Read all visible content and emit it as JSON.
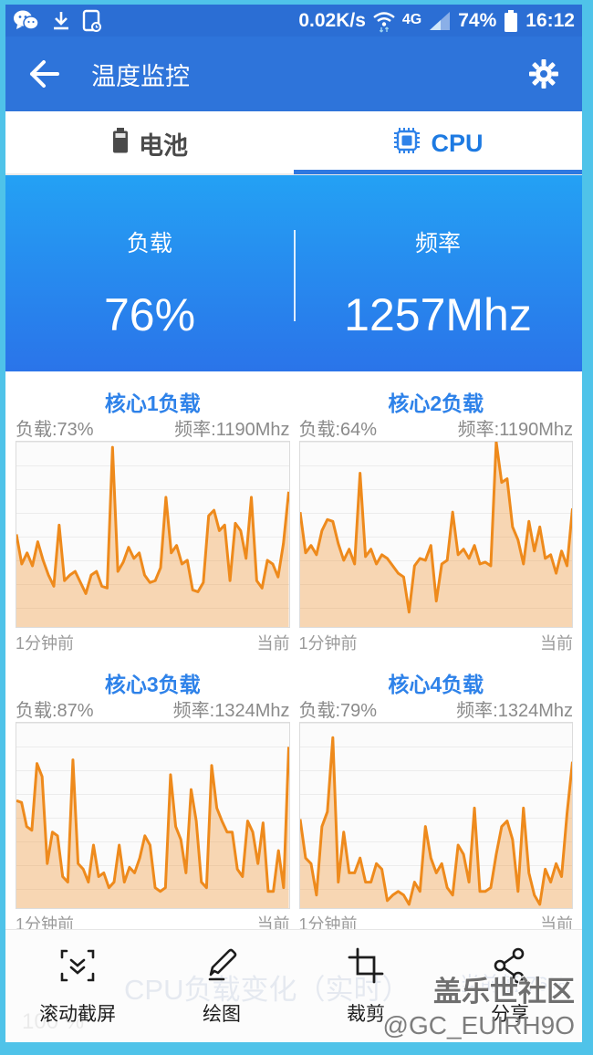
{
  "colors": {
    "frame": "#4fc3e9",
    "statusbar_bg": "#2b6ed4",
    "appbar_bg": "#2e74da",
    "tab_active": "#1d7ae2",
    "panel_gradient_top": "#24a1f4",
    "panel_gradient_bottom": "#2a74e9",
    "chart_line": "#ee8a1c",
    "chart_fill": "#ee8a1c",
    "chart_title": "#2e82e9"
  },
  "status_bar": {
    "net_speed": "0.02K/s",
    "network_type": "4G",
    "battery_percent": "74%",
    "time": "16:12",
    "left_icons": [
      "wechat-icon",
      "download-icon",
      "screenshot-notification-icon"
    ],
    "right_icons": [
      "wifi-icon",
      "signal-icon",
      "battery-icon"
    ]
  },
  "app_bar": {
    "title": "温度监控"
  },
  "tabs": [
    {
      "label": "电池",
      "active": false
    },
    {
      "label": "CPU",
      "active": true
    }
  ],
  "summary": {
    "load_label": "负载",
    "load_value": "76%",
    "freq_label": "频率",
    "freq_value": "1257Mhz"
  },
  "charts": [
    {
      "title": "核心1负载",
      "load": "负载:73%",
      "freq": "频率:1190Mhz",
      "x_left": "1分钟前",
      "x_right": "当前"
    },
    {
      "title": "核心2负载",
      "load": "负载:64%",
      "freq": "频率:1190Mhz",
      "x_left": "1分钟前",
      "x_right": "当前"
    },
    {
      "title": "核心3负载",
      "load": "负载:87%",
      "freq": "频率:1324Mhz",
      "x_left": "1分钟前",
      "x_right": "当前"
    },
    {
      "title": "核心4负载",
      "load": "负载:79%",
      "freq": "频率:1324Mhz",
      "x_left": "1分钟前",
      "x_right": "当前"
    }
  ],
  "chart_data": [
    {
      "type": "area",
      "title": "核心1负载",
      "xlabel_left": "1分钟前",
      "xlabel_right": "当前",
      "ylim": [
        0,
        100
      ],
      "values": [
        50,
        34,
        40,
        33,
        46,
        36,
        28,
        22,
        55,
        25,
        28,
        30,
        24,
        18,
        28,
        30,
        22,
        21,
        97,
        30,
        35,
        43,
        37,
        40,
        28,
        24,
        25,
        32,
        70,
        40,
        44,
        34,
        36,
        20,
        19,
        24,
        60,
        63,
        52,
        55,
        25,
        56,
        52,
        37,
        70,
        25,
        21,
        36,
        34,
        27,
        45,
        73
      ]
    },
    {
      "type": "area",
      "title": "核心2负载",
      "xlabel_left": "1分钟前",
      "xlabel_right": "当前",
      "ylim": [
        0,
        100
      ],
      "values": [
        62,
        40,
        44,
        39,
        52,
        58,
        57,
        45,
        36,
        42,
        34,
        83,
        38,
        42,
        34,
        39,
        37,
        33,
        29,
        27,
        8,
        33,
        37,
        36,
        44,
        14,
        34,
        36,
        62,
        39,
        42,
        37,
        44,
        34,
        35,
        33,
        100,
        78,
        80,
        54,
        47,
        34,
        57,
        41,
        54,
        37,
        39,
        29,
        41,
        33,
        64
      ]
    },
    {
      "type": "area",
      "title": "核心3负载",
      "xlabel_left": "1分钟前",
      "xlabel_right": "当前",
      "ylim": [
        0,
        100
      ],
      "values": [
        58,
        57,
        44,
        42,
        78,
        71,
        24,
        41,
        39,
        17,
        14,
        80,
        24,
        21,
        14,
        34,
        17,
        19,
        11,
        14,
        34,
        14,
        22,
        19,
        27,
        39,
        34,
        11,
        9,
        11,
        72,
        44,
        37,
        19,
        64,
        47,
        14,
        11,
        77,
        54,
        47,
        41,
        41,
        21,
        17,
        47,
        41,
        24,
        46,
        9,
        9,
        31,
        11,
        87
      ]
    },
    {
      "type": "area",
      "title": "核心4负载",
      "xlabel_left": "1分钟前",
      "xlabel_right": "当前",
      "ylim": [
        0,
        100
      ],
      "values": [
        48,
        27,
        24,
        7,
        44,
        52,
        92,
        14,
        41,
        19,
        19,
        27,
        14,
        14,
        24,
        21,
        4,
        7,
        9,
        7,
        2,
        14,
        9,
        44,
        27,
        19,
        24,
        11,
        7,
        34,
        29,
        14,
        54,
        9,
        9,
        11,
        29,
        44,
        47,
        37,
        9,
        54,
        19,
        7,
        2,
        21,
        14,
        24,
        17,
        51,
        79
      ]
    }
  ],
  "toolbar": {
    "items": [
      {
        "label": "滚动截屏",
        "icon": "scroll-capture-icon"
      },
      {
        "label": "绘图",
        "icon": "draw-icon"
      },
      {
        "label": "裁剪",
        "icon": "crop-icon"
      },
      {
        "label": "分享",
        "icon": "share-icon"
      }
    ]
  },
  "ghost_overlay": {
    "title": "CPU负载变化（实时）",
    "current_value": "当前值:76%",
    "progress": "100 %"
  },
  "watermark": {
    "line1": "盖乐世社区",
    "line2": "@GC_EUIRH9O"
  }
}
